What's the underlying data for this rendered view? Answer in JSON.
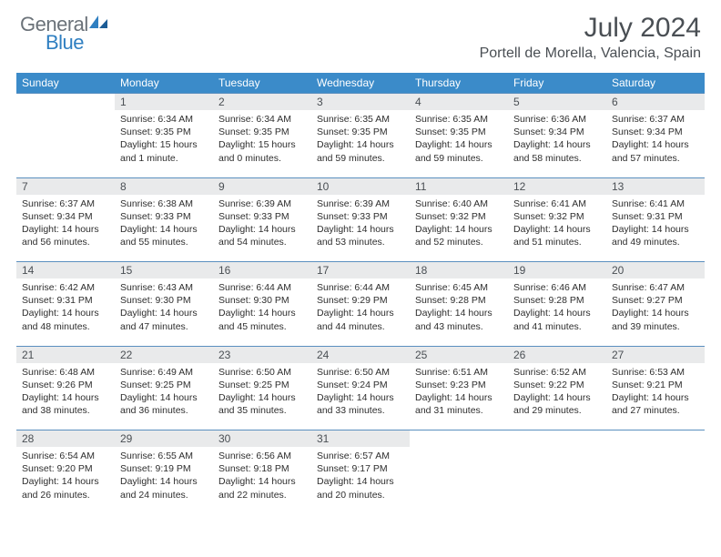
{
  "branding": {
    "word1": "General",
    "word2": "Blue",
    "color_general": "#6b7279",
    "color_blue": "#2f7fc1"
  },
  "header": {
    "title": "July 2024",
    "location": "Portell de Morella, Valencia, Spain"
  },
  "theme": {
    "header_bg": "#3b8bc9",
    "daynum_bg": "#e9eaeb",
    "rule_color": "#5a8fbf",
    "text_color": "#2e2e2e"
  },
  "weekdays": [
    "Sunday",
    "Monday",
    "Tuesday",
    "Wednesday",
    "Thursday",
    "Friday",
    "Saturday"
  ],
  "weeks": [
    {
      "nums": [
        "",
        "1",
        "2",
        "3",
        "4",
        "5",
        "6"
      ],
      "cells": [
        null,
        {
          "sunrise": "Sunrise: 6:34 AM",
          "sunset": "Sunset: 9:35 PM",
          "day1": "Daylight: 15 hours",
          "day2": "and 1 minute."
        },
        {
          "sunrise": "Sunrise: 6:34 AM",
          "sunset": "Sunset: 9:35 PM",
          "day1": "Daylight: 15 hours",
          "day2": "and 0 minutes."
        },
        {
          "sunrise": "Sunrise: 6:35 AM",
          "sunset": "Sunset: 9:35 PM",
          "day1": "Daylight: 14 hours",
          "day2": "and 59 minutes."
        },
        {
          "sunrise": "Sunrise: 6:35 AM",
          "sunset": "Sunset: 9:35 PM",
          "day1": "Daylight: 14 hours",
          "day2": "and 59 minutes."
        },
        {
          "sunrise": "Sunrise: 6:36 AM",
          "sunset": "Sunset: 9:34 PM",
          "day1": "Daylight: 14 hours",
          "day2": "and 58 minutes."
        },
        {
          "sunrise": "Sunrise: 6:37 AM",
          "sunset": "Sunset: 9:34 PM",
          "day1": "Daylight: 14 hours",
          "day2": "and 57 minutes."
        }
      ]
    },
    {
      "nums": [
        "7",
        "8",
        "9",
        "10",
        "11",
        "12",
        "13"
      ],
      "cells": [
        {
          "sunrise": "Sunrise: 6:37 AM",
          "sunset": "Sunset: 9:34 PM",
          "day1": "Daylight: 14 hours",
          "day2": "and 56 minutes."
        },
        {
          "sunrise": "Sunrise: 6:38 AM",
          "sunset": "Sunset: 9:33 PM",
          "day1": "Daylight: 14 hours",
          "day2": "and 55 minutes."
        },
        {
          "sunrise": "Sunrise: 6:39 AM",
          "sunset": "Sunset: 9:33 PM",
          "day1": "Daylight: 14 hours",
          "day2": "and 54 minutes."
        },
        {
          "sunrise": "Sunrise: 6:39 AM",
          "sunset": "Sunset: 9:33 PM",
          "day1": "Daylight: 14 hours",
          "day2": "and 53 minutes."
        },
        {
          "sunrise": "Sunrise: 6:40 AM",
          "sunset": "Sunset: 9:32 PM",
          "day1": "Daylight: 14 hours",
          "day2": "and 52 minutes."
        },
        {
          "sunrise": "Sunrise: 6:41 AM",
          "sunset": "Sunset: 9:32 PM",
          "day1": "Daylight: 14 hours",
          "day2": "and 51 minutes."
        },
        {
          "sunrise": "Sunrise: 6:41 AM",
          "sunset": "Sunset: 9:31 PM",
          "day1": "Daylight: 14 hours",
          "day2": "and 49 minutes."
        }
      ]
    },
    {
      "nums": [
        "14",
        "15",
        "16",
        "17",
        "18",
        "19",
        "20"
      ],
      "cells": [
        {
          "sunrise": "Sunrise: 6:42 AM",
          "sunset": "Sunset: 9:31 PM",
          "day1": "Daylight: 14 hours",
          "day2": "and 48 minutes."
        },
        {
          "sunrise": "Sunrise: 6:43 AM",
          "sunset": "Sunset: 9:30 PM",
          "day1": "Daylight: 14 hours",
          "day2": "and 47 minutes."
        },
        {
          "sunrise": "Sunrise: 6:44 AM",
          "sunset": "Sunset: 9:30 PM",
          "day1": "Daylight: 14 hours",
          "day2": "and 45 minutes."
        },
        {
          "sunrise": "Sunrise: 6:44 AM",
          "sunset": "Sunset: 9:29 PM",
          "day1": "Daylight: 14 hours",
          "day2": "and 44 minutes."
        },
        {
          "sunrise": "Sunrise: 6:45 AM",
          "sunset": "Sunset: 9:28 PM",
          "day1": "Daylight: 14 hours",
          "day2": "and 43 minutes."
        },
        {
          "sunrise": "Sunrise: 6:46 AM",
          "sunset": "Sunset: 9:28 PM",
          "day1": "Daylight: 14 hours",
          "day2": "and 41 minutes."
        },
        {
          "sunrise": "Sunrise: 6:47 AM",
          "sunset": "Sunset: 9:27 PM",
          "day1": "Daylight: 14 hours",
          "day2": "and 39 minutes."
        }
      ]
    },
    {
      "nums": [
        "21",
        "22",
        "23",
        "24",
        "25",
        "26",
        "27"
      ],
      "cells": [
        {
          "sunrise": "Sunrise: 6:48 AM",
          "sunset": "Sunset: 9:26 PM",
          "day1": "Daylight: 14 hours",
          "day2": "and 38 minutes."
        },
        {
          "sunrise": "Sunrise: 6:49 AM",
          "sunset": "Sunset: 9:25 PM",
          "day1": "Daylight: 14 hours",
          "day2": "and 36 minutes."
        },
        {
          "sunrise": "Sunrise: 6:50 AM",
          "sunset": "Sunset: 9:25 PM",
          "day1": "Daylight: 14 hours",
          "day2": "and 35 minutes."
        },
        {
          "sunrise": "Sunrise: 6:50 AM",
          "sunset": "Sunset: 9:24 PM",
          "day1": "Daylight: 14 hours",
          "day2": "and 33 minutes."
        },
        {
          "sunrise": "Sunrise: 6:51 AM",
          "sunset": "Sunset: 9:23 PM",
          "day1": "Daylight: 14 hours",
          "day2": "and 31 minutes."
        },
        {
          "sunrise": "Sunrise: 6:52 AM",
          "sunset": "Sunset: 9:22 PM",
          "day1": "Daylight: 14 hours",
          "day2": "and 29 minutes."
        },
        {
          "sunrise": "Sunrise: 6:53 AM",
          "sunset": "Sunset: 9:21 PM",
          "day1": "Daylight: 14 hours",
          "day2": "and 27 minutes."
        }
      ]
    },
    {
      "nums": [
        "28",
        "29",
        "30",
        "31",
        "",
        "",
        ""
      ],
      "cells": [
        {
          "sunrise": "Sunrise: 6:54 AM",
          "sunset": "Sunset: 9:20 PM",
          "day1": "Daylight: 14 hours",
          "day2": "and 26 minutes."
        },
        {
          "sunrise": "Sunrise: 6:55 AM",
          "sunset": "Sunset: 9:19 PM",
          "day1": "Daylight: 14 hours",
          "day2": "and 24 minutes."
        },
        {
          "sunrise": "Sunrise: 6:56 AM",
          "sunset": "Sunset: 9:18 PM",
          "day1": "Daylight: 14 hours",
          "day2": "and 22 minutes."
        },
        {
          "sunrise": "Sunrise: 6:57 AM",
          "sunset": "Sunset: 9:17 PM",
          "day1": "Daylight: 14 hours",
          "day2": "and 20 minutes."
        },
        null,
        null,
        null
      ]
    }
  ]
}
